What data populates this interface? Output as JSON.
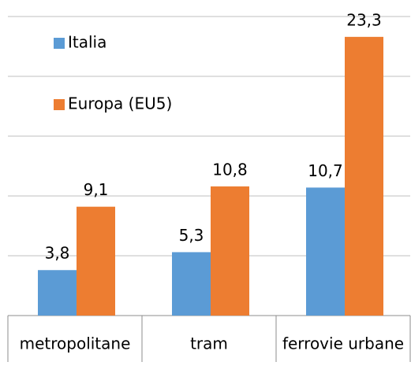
{
  "chart_data": {
    "type": "bar",
    "categories": [
      "metropolitane",
      "tram",
      "ferrovie urbane"
    ],
    "series": [
      {
        "name": "Italia",
        "color": "#5b9bd5",
        "values": [
          3.8,
          5.3,
          10.7
        ],
        "value_labels": [
          "3,8",
          "5,3",
          "10,7"
        ]
      },
      {
        "name": "Europa (EU5)",
        "color": "#ed7d31",
        "values": [
          9.1,
          10.8,
          23.3
        ],
        "value_labels": [
          "9,1",
          "10,8",
          "23,3"
        ]
      }
    ],
    "ylim": [
      0,
      25
    ],
    "yticks": [
      0,
      5,
      10,
      15,
      20,
      25
    ],
    "grid": true,
    "legend": "top-left"
  }
}
